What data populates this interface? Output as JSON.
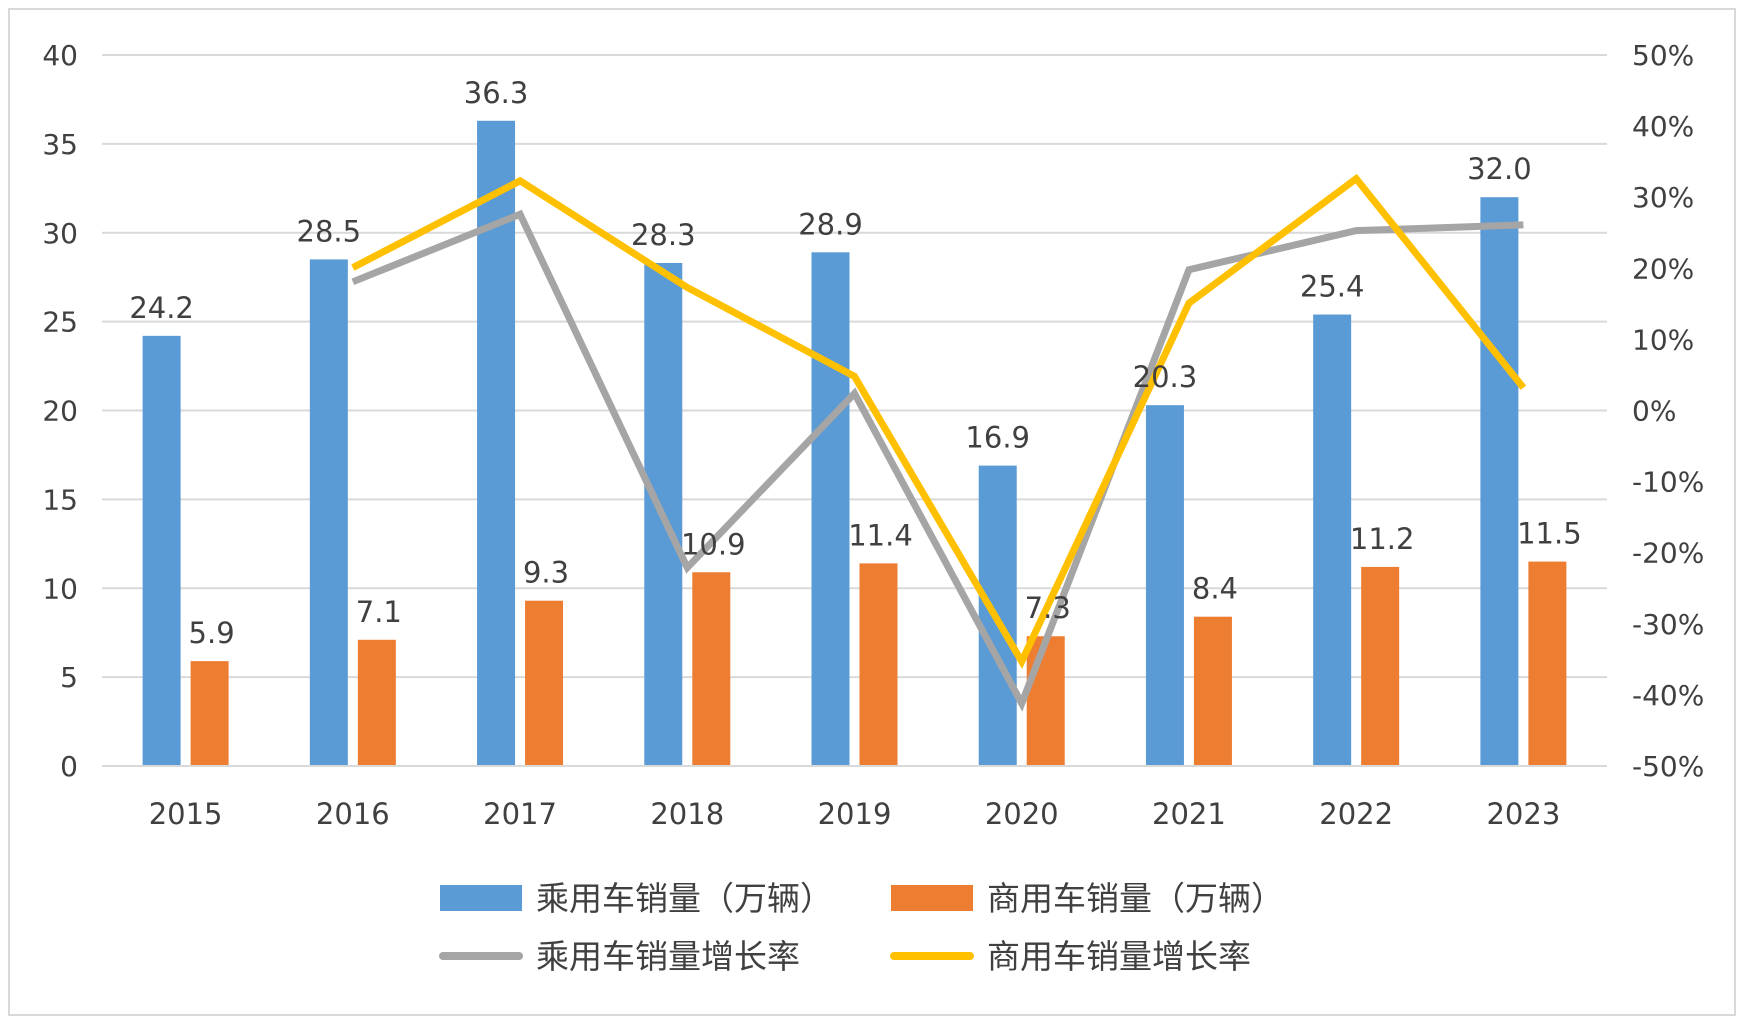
{
  "chart_data": {
    "type": "bar+line",
    "categories": [
      "2015",
      "2016",
      "2017",
      "2018",
      "2019",
      "2020",
      "2021",
      "2022",
      "2023"
    ],
    "series": [
      {
        "name": "乘用车销量（万辆）",
        "kind": "bar",
        "axis": "left",
        "color": "#5b9bd5",
        "values": [
          24.2,
          28.5,
          36.3,
          28.3,
          28.9,
          16.9,
          20.3,
          25.4,
          32.0
        ],
        "labels": [
          "24.2",
          "28.5",
          "36.3",
          "28.3",
          "28.9",
          "16.9",
          "20.3",
          "25.4",
          "32.0"
        ]
      },
      {
        "name": "商用车销量（万辆）",
        "kind": "bar",
        "axis": "left",
        "color": "#ed7d31",
        "values": [
          5.9,
          7.1,
          9.3,
          10.9,
          11.4,
          7.3,
          8.4,
          11.2,
          11.5
        ],
        "labels": [
          "5.9",
          "7.1",
          "9.3",
          "10.9",
          "11.4",
          "7.3",
          "8.4",
          "11.2",
          "11.5"
        ]
      },
      {
        "name": "乘用车销量增长率",
        "kind": "line",
        "axis": "right",
        "color": "#a5a5a5",
        "values": [
          null,
          18.1,
          27.6,
          -22.1,
          2.4,
          -41.2,
          19.8,
          25.3,
          26.1
        ]
      },
      {
        "name": "商用车销量增长率",
        "kind": "line",
        "axis": "right",
        "color": "#ffc000",
        "values": [
          null,
          20.1,
          32.3,
          17.3,
          4.8,
          -35.3,
          15.1,
          32.6,
          3.2
        ]
      }
    ],
    "y_left": {
      "range": [
        0,
        40
      ],
      "ticks": [
        "0",
        "5",
        "10",
        "15",
        "20",
        "25",
        "30",
        "35",
        "40"
      ]
    },
    "y_right": {
      "range": [
        -50,
        50
      ],
      "unit": "%",
      "ticks": [
        "-50%",
        "-40%",
        "-30%",
        "-20%",
        "-10%",
        "0%",
        "10%",
        "20%",
        "30%",
        "40%",
        "50%"
      ]
    },
    "grid": true,
    "legend": "bottom",
    "title": "",
    "xlabel": "",
    "ylabel": ""
  }
}
